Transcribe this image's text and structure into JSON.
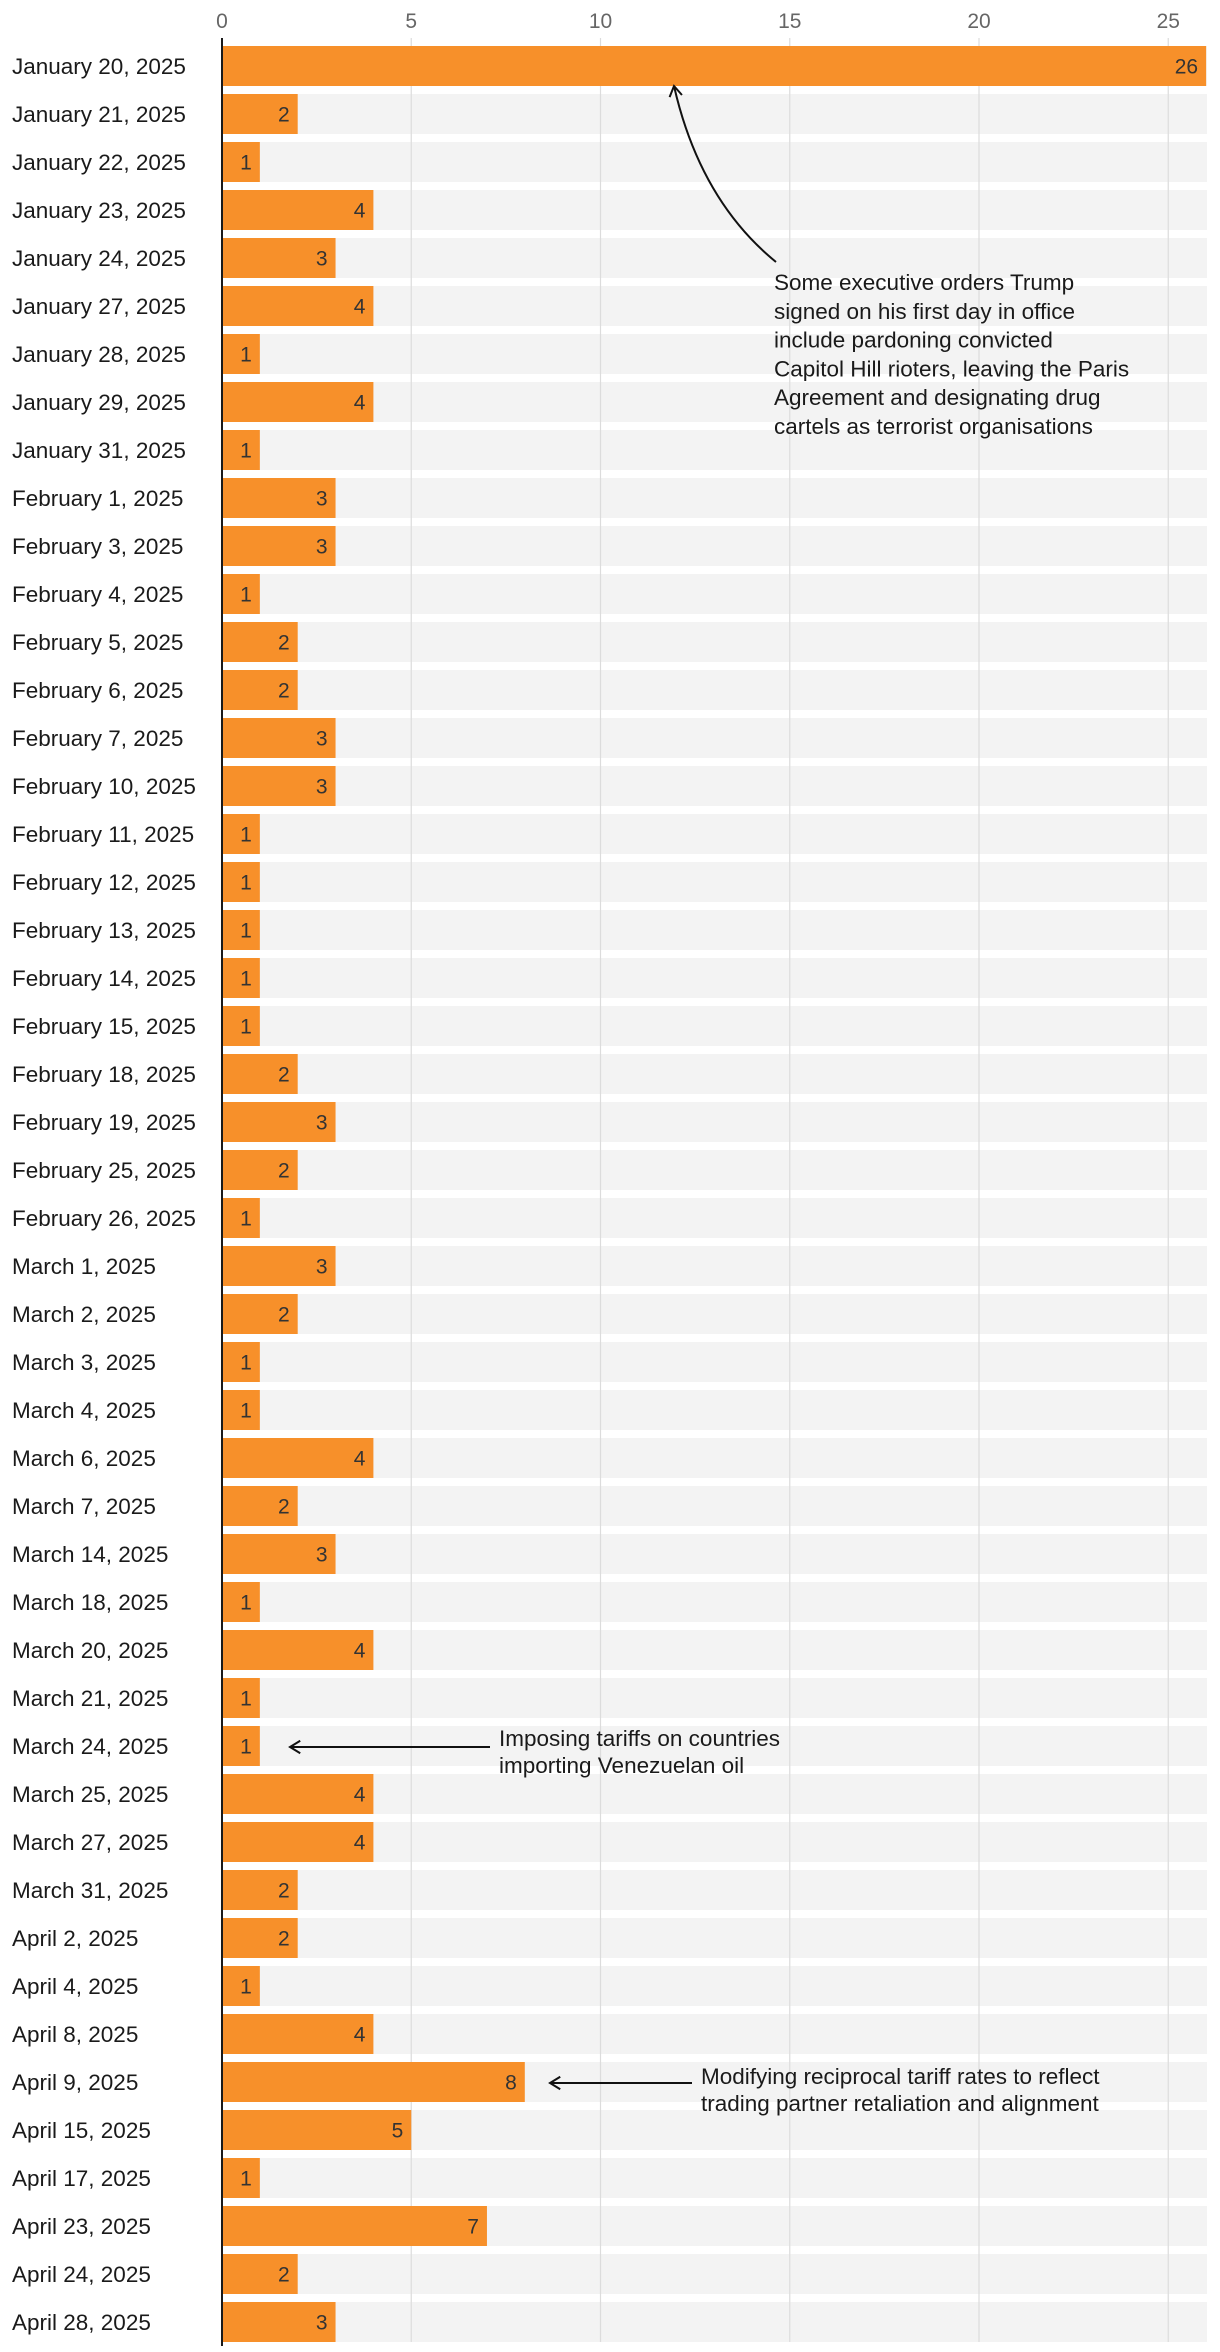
{
  "chart_data": {
    "type": "bar",
    "orientation": "horizontal",
    "title": "",
    "xlabel": "",
    "ylabel": "",
    "xlim": [
      0,
      26
    ],
    "xticks": [
      0,
      5,
      10,
      15,
      20,
      25
    ],
    "grid": true,
    "bar_color": "#f7902a",
    "track_color": "#f3f3f3",
    "categories": [
      "January 20, 2025",
      "January 21, 2025",
      "January 22, 2025",
      "January 23, 2025",
      "January 24, 2025",
      "January 27, 2025",
      "January 28, 2025",
      "January 29, 2025",
      "January 31, 2025",
      "February 1, 2025",
      "February 3, 2025",
      "February 4, 2025",
      "February 5, 2025",
      "February 6, 2025",
      "February 7, 2025",
      "February 10, 2025",
      "February 11, 2025",
      "February 12, 2025",
      "February 13, 2025",
      "February 14, 2025",
      "February 15, 2025",
      "February 18, 2025",
      "February 19, 2025",
      "February 25, 2025",
      "February 26, 2025",
      "March 1, 2025",
      "March 2, 2025",
      "March 3, 2025",
      "March 4, 2025",
      "March 6, 2025",
      "March 7, 2025",
      "March 14, 2025",
      "March 18, 2025",
      "March 20, 2025",
      "March 21, 2025",
      "March 24, 2025",
      "March 25, 2025",
      "March 27, 2025",
      "March 31, 2025",
      "April 2, 2025",
      "April 4, 2025",
      "April 8, 2025",
      "April 9, 2025",
      "April 15, 2025",
      "April 17, 2025",
      "April 23, 2025",
      "April 24, 2025",
      "April 28, 2025"
    ],
    "values": [
      26,
      2,
      1,
      4,
      3,
      4,
      1,
      4,
      1,
      3,
      3,
      1,
      2,
      2,
      3,
      3,
      1,
      1,
      1,
      1,
      1,
      2,
      3,
      2,
      1,
      3,
      2,
      1,
      1,
      4,
      2,
      3,
      1,
      4,
      1,
      1,
      4,
      4,
      2,
      2,
      1,
      4,
      8,
      5,
      1,
      7,
      2,
      3
    ],
    "annotations": [
      {
        "target_category": "January 20, 2025",
        "lines": [
          "Some executive orders Trump",
          "signed on his first day in office",
          "include pardoning convicted",
          "Capitol Hill rioters, leaving the Paris",
          "Agreement and designating drug",
          "cartels as terrorist organisations"
        ]
      },
      {
        "target_category": "March 24, 2025",
        "lines": [
          "Imposing tariffs on countries",
          "importing Venezuelan oil"
        ]
      },
      {
        "target_category": "April 9, 2025",
        "lines": [
          "Modifying reciprocal tariff rates to reflect",
          "trading partner retaliation and alignment"
        ]
      }
    ]
  }
}
